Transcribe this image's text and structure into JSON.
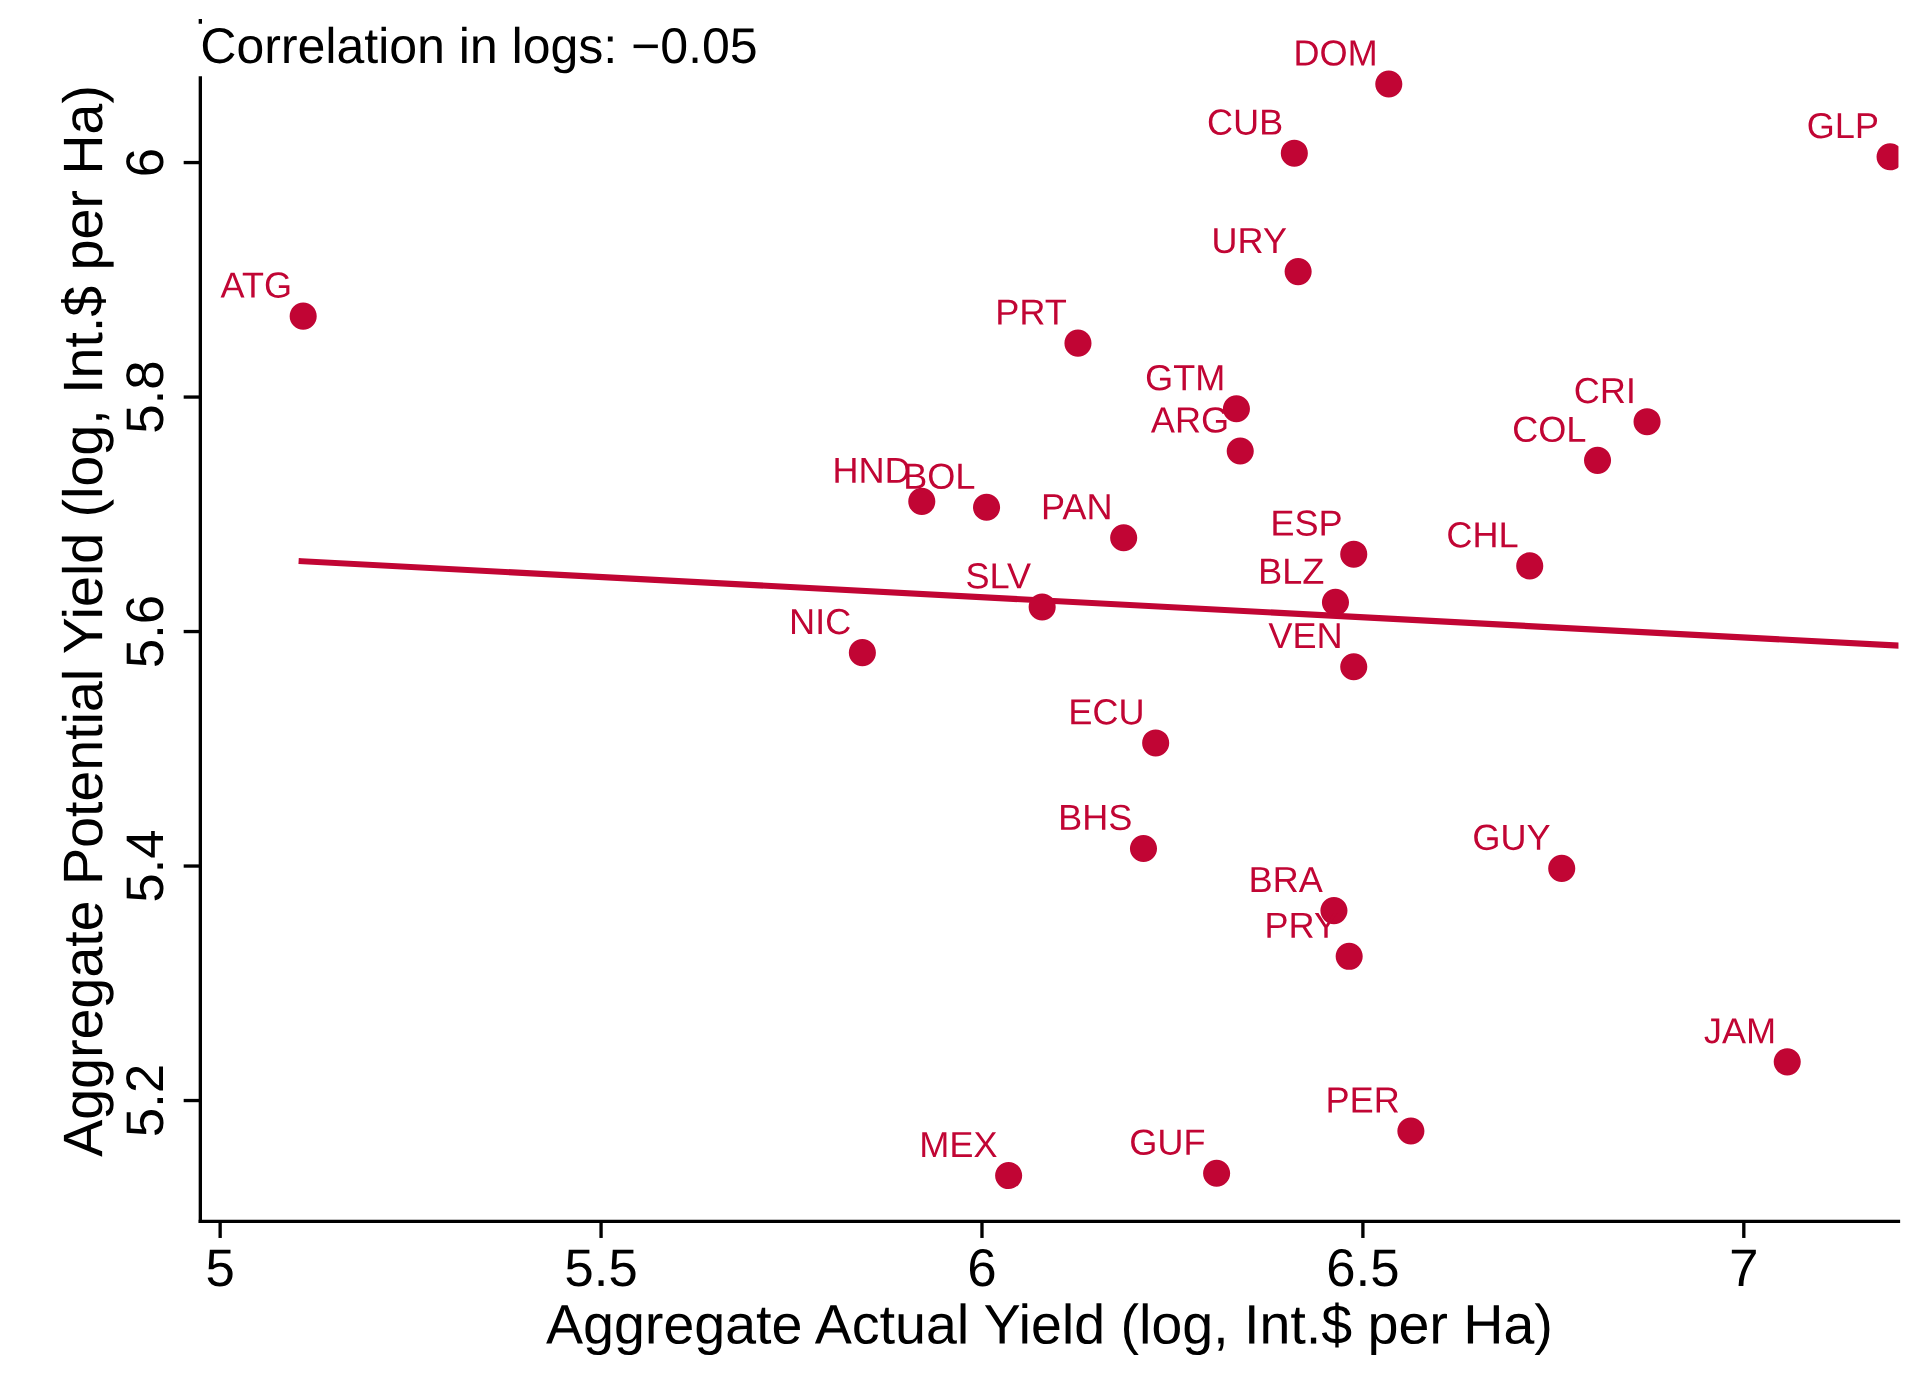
{
  "chart_data": {
    "type": "scatter",
    "xlabel": "Aggregate Actual Yield (log, Int.$ per Ha)",
    "ylabel": "Aggregate Potential Yield (log, Int.$ per Ha)",
    "xlim": [
      4.974,
      7.203
    ],
    "ylim": [
      5.097,
      6.121
    ],
    "xticks": [
      5,
      5.5,
      6,
      6.5,
      7
    ],
    "yticks": [
      5.2,
      5.4,
      5.6,
      5.8,
      6
    ],
    "grid": false,
    "legend": false,
    "series": [
      {
        "marker": "circle",
        "color": "#c10534",
        "x": [
          6.534,
          6.41,
          7.192,
          6.415,
          5.109,
          6.126,
          6.334,
          6.339,
          6.873,
          6.808,
          5.921,
          6.006,
          6.186,
          6.488,
          6.719,
          6.464,
          6.079,
          6.488,
          5.843,
          6.228,
          6.212,
          6.761,
          6.462,
          6.482,
          7.057,
          6.563,
          6.035,
          6.308
        ],
        "values": [
          6.067,
          6.008,
          6.005,
          5.907,
          5.869,
          5.846,
          5.79,
          5.754,
          5.779,
          5.746,
          5.711,
          5.706,
          5.68,
          5.666,
          5.656,
          5.625,
          5.621,
          5.57,
          5.582,
          5.505,
          5.415,
          5.398,
          5.362,
          5.323,
          5.233,
          5.174,
          5.136,
          5.138
        ]
      },
      {
        "type": "line",
        "color": "#c10534",
        "x": [
          5.107,
          7.203
        ],
        "values": [
          5.66,
          5.588
        ],
        "line_style": "solid",
        "marker": "none"
      }
    ],
    "annotations": [
      "Correlation in logs: −0.05",
      {
        "text": "DOM",
        "x": 6.534,
        "y": 6.067
      },
      {
        "text": "CUB",
        "x": 6.41,
        "y": 6.008
      },
      {
        "text": "GLP",
        "x": 7.192,
        "y": 6.005
      },
      {
        "text": "URY",
        "x": 6.415,
        "y": 5.907
      },
      {
        "text": "ATG",
        "x": 5.109,
        "y": 5.869
      },
      {
        "text": "PRT",
        "x": 6.126,
        "y": 5.846
      },
      {
        "text": "GTM",
        "x": 6.334,
        "y": 5.79
      },
      {
        "text": "ARG",
        "x": 6.339,
        "y": 5.754
      },
      {
        "text": "CRI",
        "x": 6.873,
        "y": 5.779
      },
      {
        "text": "COL",
        "x": 6.808,
        "y": 5.746
      },
      {
        "text": "HND",
        "x": 5.921,
        "y": 5.711
      },
      {
        "text": "BOL",
        "x": 6.006,
        "y": 5.706
      },
      {
        "text": "PAN",
        "x": 6.186,
        "y": 5.68
      },
      {
        "text": "ESP",
        "x": 6.488,
        "y": 5.666
      },
      {
        "text": "CHL",
        "x": 6.719,
        "y": 5.656
      },
      {
        "text": "BLZ",
        "x": 6.464,
        "y": 5.625
      },
      {
        "text": "SLV",
        "x": 6.079,
        "y": 5.621
      },
      {
        "text": "VEN",
        "x": 6.488,
        "y": 5.57
      },
      {
        "text": "NIC",
        "x": 5.843,
        "y": 5.582
      },
      {
        "text": "ECU",
        "x": 6.228,
        "y": 5.505
      },
      {
        "text": "BHS",
        "x": 6.212,
        "y": 5.415
      },
      {
        "text": "GUY",
        "x": 6.761,
        "y": 5.398
      },
      {
        "text": "BRA",
        "x": 6.462,
        "y": 5.362
      },
      {
        "text": "PRY",
        "x": 6.482,
        "y": 5.323
      },
      {
        "text": "JAM",
        "x": 7.057,
        "y": 5.233
      },
      {
        "text": "PER",
        "x": 6.563,
        "y": 5.174
      },
      {
        "text": "MEX",
        "x": 6.035,
        "y": 5.136
      },
      {
        "text": "GUF",
        "x": 6.308,
        "y": 5.138
      }
    ]
  }
}
